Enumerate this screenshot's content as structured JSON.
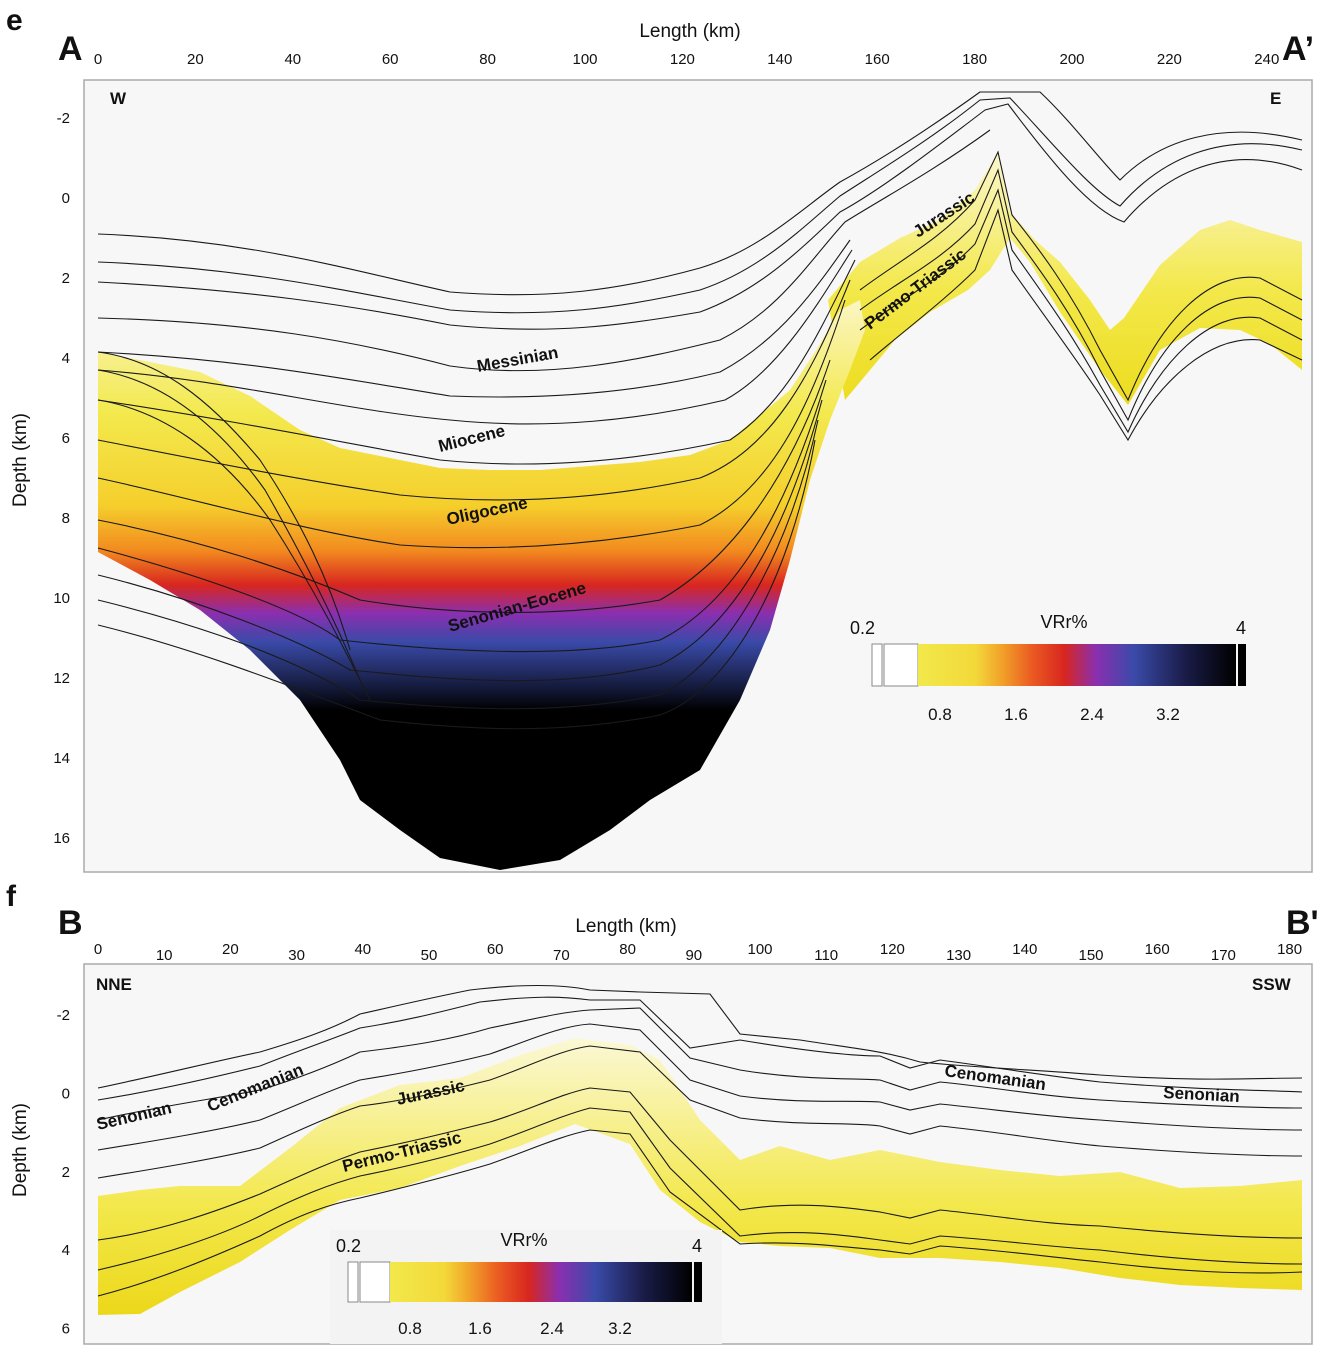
{
  "panels": [
    {
      "letter": "e",
      "start_label": "A",
      "end_label": "A’",
      "west_label": "W",
      "east_label": "E",
      "x_axis_title": "Length (km)",
      "y_axis_title": "Depth (km)",
      "x_ticks": [
        "0",
        "20",
        "40",
        "60",
        "80",
        "100",
        "120",
        "140",
        "160",
        "180",
        "200",
        "220",
        "240"
      ],
      "y_ticks": [
        "-2",
        "0",
        "2",
        "4",
        "6",
        "8",
        "10",
        "12",
        "14",
        "16"
      ],
      "units": [
        {
          "text": "Messinian"
        },
        {
          "text": "Miocene"
        },
        {
          "text": "Oligocene"
        },
        {
          "text": "Senonian-Eocene"
        },
        {
          "text": "Jurassic"
        },
        {
          "text": "Permo-Triassic"
        }
      ],
      "colorbar": {
        "title": "VRr%",
        "min_label": "0.2",
        "max_label": "4",
        "ticks": [
          "0.8",
          "1.6",
          "2.4",
          "3.2"
        ]
      }
    },
    {
      "letter": "f",
      "start_label": "B",
      "end_label": "B'",
      "west_label": "NNE",
      "east_label": "SSW",
      "x_axis_title": "Length (km)",
      "y_axis_title": "Depth (km)",
      "x_ticks": [
        "0",
        "10",
        "20",
        "30",
        "40",
        "50",
        "60",
        "70",
        "80",
        "90",
        "100",
        "110",
        "120",
        "130",
        "140",
        "150",
        "160",
        "170",
        "180"
      ],
      "y_ticks": [
        "-2",
        "0",
        "2",
        "4",
        "6"
      ],
      "units": [
        {
          "text": "Senonian"
        },
        {
          "text": "Cenomanian"
        },
        {
          "text": "Jurassic"
        },
        {
          "text": "Permo-Triassic"
        },
        {
          "text": "Cenomanian"
        },
        {
          "text": "Senonian"
        }
      ],
      "colorbar": {
        "title": "VRr%",
        "min_label": "0.2",
        "max_label": "4",
        "ticks": [
          "0.8",
          "1.6",
          "2.4",
          "3.2"
        ]
      }
    }
  ],
  "colors": {
    "yellow": "#f2e84a",
    "orange": "#f28a1f",
    "red": "#d8261f",
    "purple": "#8a2fb0",
    "blue": "#3a4aa8",
    "black": "#000000",
    "horizon_line": "#1a1a1a",
    "panel_background": "#f7f7f7"
  }
}
